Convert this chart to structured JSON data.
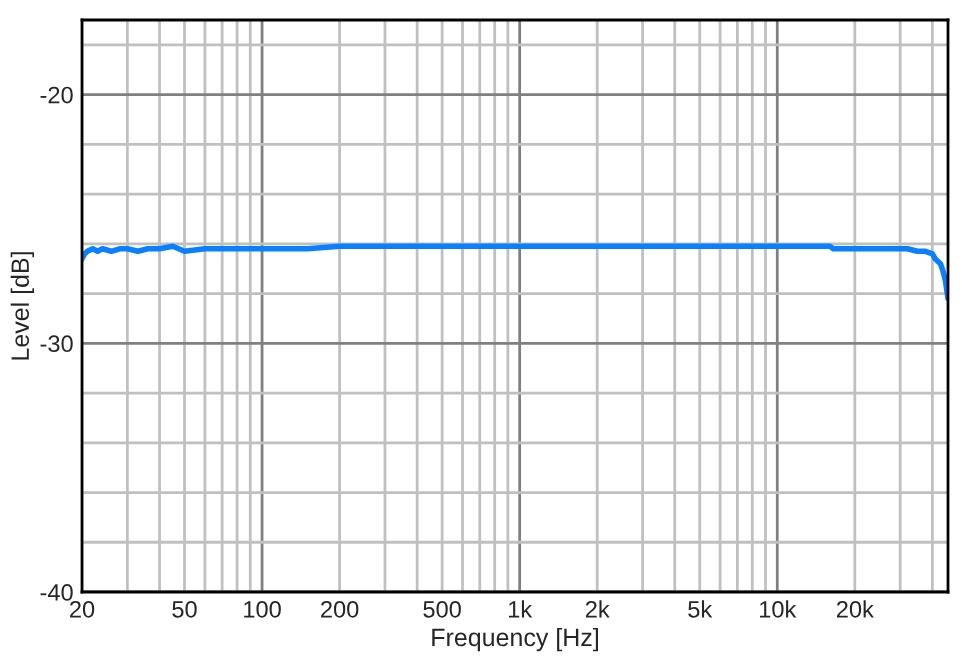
{
  "chart_data": {
    "type": "line",
    "xlabel": "Frequency [Hz]",
    "ylabel": "Level [dB]",
    "log": "x",
    "grid": true,
    "marker": "none",
    "line_style": "solid",
    "xlim": [
      20,
      46000
    ],
    "ylim": [
      -40,
      -17
    ],
    "xticks": [
      20,
      {
        "value": 30,
        "label": null
      },
      {
        "value": 40,
        "label": null
      },
      50,
      {
        "value": 60,
        "label": null
      },
      {
        "value": 70,
        "label": null
      },
      {
        "value": 80,
        "label": null
      },
      {
        "value": 90,
        "label": null
      },
      100,
      200,
      {
        "value": 300,
        "label": null
      },
      {
        "value": 400,
        "label": null
      },
      500,
      {
        "value": 600,
        "label": null
      },
      {
        "value": 700,
        "label": null
      },
      {
        "value": 800,
        "label": null
      },
      {
        "value": 900,
        "label": null
      },
      {
        "value": 1000,
        "label": "1k"
      },
      {
        "value": 2000,
        "label": "2k"
      },
      {
        "value": 3000,
        "label": null
      },
      {
        "value": 4000,
        "label": null
      },
      {
        "value": 5000,
        "label": "5k"
      },
      {
        "value": 6000,
        "label": null
      },
      {
        "value": 7000,
        "label": null
      },
      {
        "value": 8000,
        "label": null
      },
      {
        "value": 9000,
        "label": null
      },
      {
        "value": 10000,
        "label": "10k"
      },
      {
        "value": 20000,
        "label": "20k"
      },
      {
        "value": 30000,
        "label": null
      },
      {
        "value": 40000,
        "label": null
      }
    ],
    "yticks": [
      -40,
      {
        "value": -38,
        "label": null
      },
      {
        "value": -36,
        "label": null
      },
      {
        "value": -34,
        "label": null
      },
      {
        "value": -32,
        "label": null
      },
      -30,
      {
        "value": -28,
        "label": null
      },
      {
        "value": -26,
        "label": null
      },
      {
        "value": -24,
        "label": null
      },
      {
        "value": -22,
        "label": null
      },
      -20,
      {
        "value": -18,
        "label": null
      }
    ],
    "series": [
      {
        "color": "#0a80ff",
        "x": [
          20,
          20.5,
          21,
          22,
          23,
          24,
          26,
          28,
          30,
          33,
          36,
          40,
          45,
          50,
          60,
          70,
          80,
          100,
          120,
          150,
          200,
          500,
          1000,
          5000,
          10000,
          16000,
          16500,
          25000,
          32000,
          35000,
          37600,
          40000,
          41000,
          43000,
          44000,
          45000,
          46000
        ],
        "values": [
          -26.6,
          -26.4,
          -26.3,
          -26.2,
          -26.3,
          -26.2,
          -26.3,
          -26.2,
          -26.2,
          -26.3,
          -26.2,
          -26.2,
          -26.1,
          -26.3,
          -26.2,
          -26.2,
          -26.2,
          -26.2,
          -26.2,
          -26.2,
          -26.1,
          -26.1,
          -26.1,
          -26.1,
          -26.1,
          -26.1,
          -26.2,
          -26.2,
          -26.2,
          -26.3,
          -26.3,
          -26.4,
          -26.6,
          -26.8,
          -27.1,
          -27.5,
          -28.2
        ]
      }
    ]
  }
}
